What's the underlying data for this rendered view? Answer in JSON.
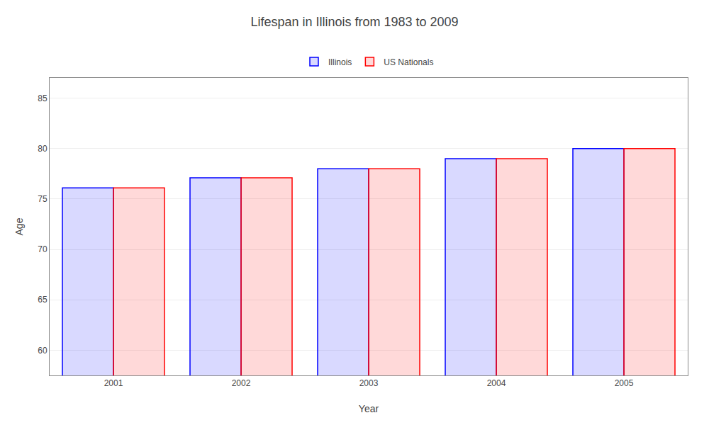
{
  "chart_data": {
    "type": "bar",
    "title": "Lifespan in Illinois from 1983 to 2009",
    "xlabel": "Year",
    "ylabel": "Age",
    "categories": [
      "2001",
      "2002",
      "2003",
      "2004",
      "2005"
    ],
    "series": [
      {
        "name": "Illinois",
        "color": "#0000ff",
        "values": [
          76.1,
          77.1,
          78.0,
          79.0,
          80.0
        ]
      },
      {
        "name": "US Nationals",
        "color": "#ff0000",
        "values": [
          76.1,
          77.1,
          78.0,
          79.0,
          80.0
        ]
      }
    ],
    "ylim": [
      57.5,
      87
    ],
    "yticks": [
      60,
      65,
      70,
      75,
      80,
      85
    ],
    "grid": true,
    "legend": "top"
  }
}
